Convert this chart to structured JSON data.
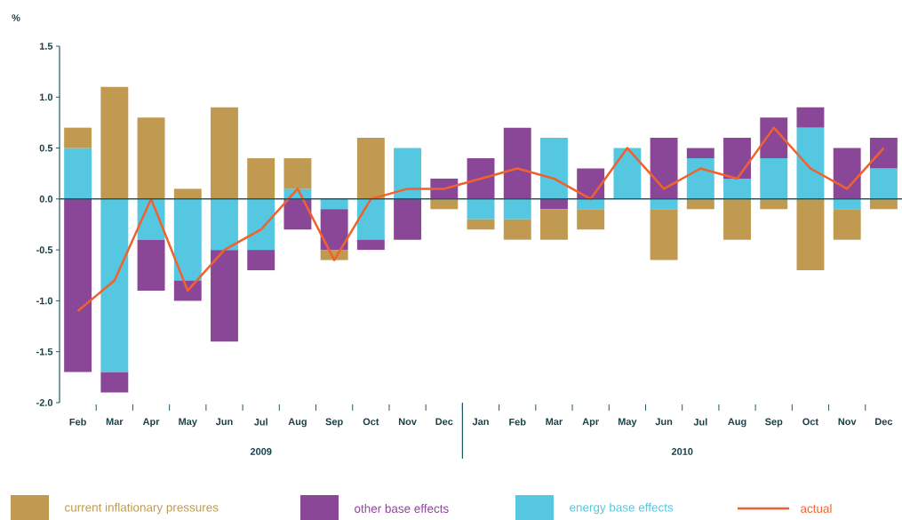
{
  "chart_data": {
    "type": "bar",
    "stacked": true,
    "ylabel": "%",
    "categories": [
      "Feb",
      "Mar",
      "Apr",
      "May",
      "Jun",
      "Jul",
      "Aug",
      "Sep",
      "Oct",
      "Nov",
      "Dec",
      "Jan",
      "Feb",
      "Mar",
      "Apr",
      "May",
      "Jun",
      "Jul",
      "Aug",
      "Sep",
      "Oct",
      "Nov",
      "Dec"
    ],
    "annotations": [
      "2009",
      "2010"
    ],
    "ylim": [
      -2.0,
      1.5
    ],
    "yticks": [
      {
        "value": -2,
        "label": "-2.0"
      },
      -1.5,
      {
        "value": -1,
        "label": "-1.0"
      },
      -0.5,
      {
        "value": 0,
        "label": "0.0"
      },
      0.5,
      {
        "value": 1,
        "label": "1.0"
      },
      1.5
    ],
    "grid": false,
    "legend": "bottom",
    "ref_lines": [
      {
        "axis": "y",
        "value": 0,
        "color": "#1f5a66"
      }
    ],
    "series": [
      {
        "name": "energy base effects",
        "color": "#55c7e0",
        "values": [
          0.5,
          -1.7,
          -0.4,
          -0.8,
          -0.5,
          -0.5,
          0.1,
          -0.1,
          -0.4,
          0.5,
          null,
          -0.2,
          -0.2,
          0.6,
          -0.1,
          0.5,
          -0.1,
          0.4,
          0.2,
          0.4,
          0.7,
          -0.1,
          0.3
        ]
      },
      {
        "name": "other base effects",
        "color": "#8b4797",
        "values": [
          -1.7,
          -0.2,
          -0.5,
          -0.2,
          -0.9,
          -0.2,
          -0.3,
          -0.4,
          -0.1,
          -0.4,
          0.2,
          0.4,
          0.7,
          -0.1,
          0.3,
          null,
          0.6,
          0.1,
          0.4,
          0.4,
          0.2,
          0.5,
          0.3
        ]
      },
      {
        "name": "current inflationary pressures",
        "color": "#c09a50",
        "values": [
          0.2,
          1.1,
          0.8,
          0.1,
          0.9,
          0.4,
          0.3,
          -0.1,
          0.6,
          null,
          -0.1,
          -0.1,
          -0.2,
          -0.3,
          -0.2,
          null,
          -0.5,
          -0.1,
          -0.4,
          -0.1,
          -0.7,
          -0.3,
          -0.1
        ]
      },
      {
        "name": "actual",
        "type": "line",
        "color": "#f0622d",
        "marker": "none",
        "line_style": "solid",
        "values": [
          -1.1,
          -0.8,
          0.0,
          -0.9,
          -0.5,
          -0.3,
          0.1,
          -0.6,
          0.0,
          0.1,
          0.1,
          0.2,
          0.3,
          0.2,
          0.0,
          0.5,
          0.1,
          0.3,
          0.2,
          0.7,
          0.3,
          0.1,
          0.5
        ]
      }
    ]
  }
}
